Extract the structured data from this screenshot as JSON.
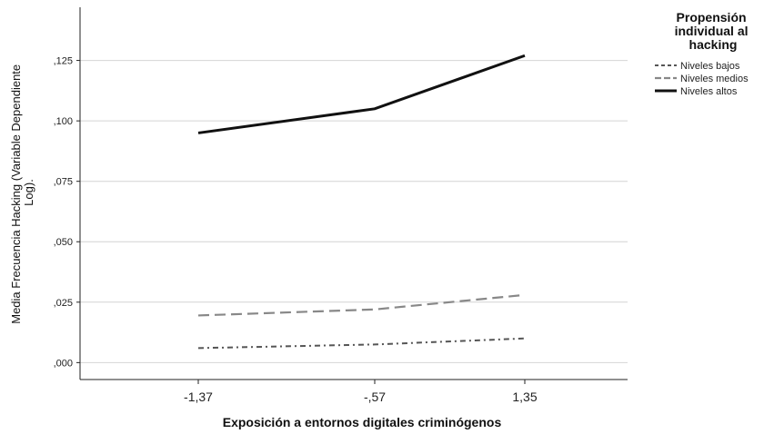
{
  "chart_data": {
    "type": "line",
    "title": "",
    "xlabel": "Exposición a entornos digitales criminógenos",
    "ylabel_lines": [
      "Media Frecuencia Hacking (Variable Dependiente",
      "Log)."
    ],
    "categories": [
      "-1,37",
      "-,57",
      "1,35"
    ],
    "yticks": [
      ",000",
      ",025",
      ",050",
      ",075",
      ",100",
      ",125"
    ],
    "ylim": [
      -0.007,
      0.147
    ],
    "grid": true,
    "legend_position": "top-right",
    "legend_title_lines": [
      "Propensión",
      "individual al",
      "hacking"
    ],
    "series": [
      {
        "name": "Niveles bajos",
        "values": [
          0.006,
          0.0075,
          0.01
        ],
        "color": "#555555",
        "dash": "6,4,2,4",
        "width": 2
      },
      {
        "name": "Niveles medios",
        "values": [
          0.0195,
          0.022,
          0.028
        ],
        "color": "#888888",
        "dash": "12,6",
        "width": 2.2
      },
      {
        "name": "Niveles altos",
        "values": [
          0.095,
          0.105,
          0.127
        ],
        "color": "#111111",
        "dash": "",
        "width": 3
      }
    ]
  }
}
